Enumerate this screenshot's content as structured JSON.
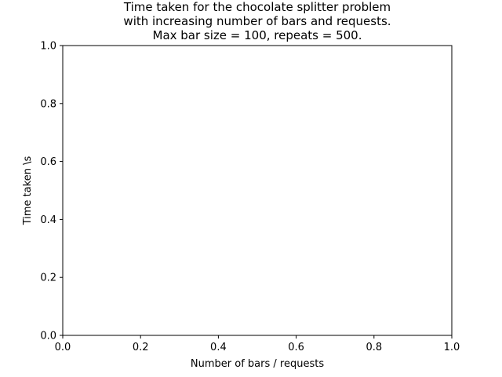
{
  "chart_data": {
    "type": "line",
    "title_lines": [
      "Time taken for the chocolate splitter problem",
      "with increasing number of bars and requests.",
      "Max bar size = 100, repeats = 500."
    ],
    "xlabel": "Number of bars / requests",
    "ylabel": "Time taken \\s",
    "xlim": [
      0.0,
      1.0
    ],
    "ylim": [
      0.0,
      1.0
    ],
    "x_ticks": [
      "0.0",
      "0.2",
      "0.4",
      "0.6",
      "0.8",
      "1.0"
    ],
    "y_ticks": [
      "0.0",
      "0.2",
      "0.4",
      "0.6",
      "0.8",
      "1.0"
    ],
    "series": [],
    "grid": false
  }
}
